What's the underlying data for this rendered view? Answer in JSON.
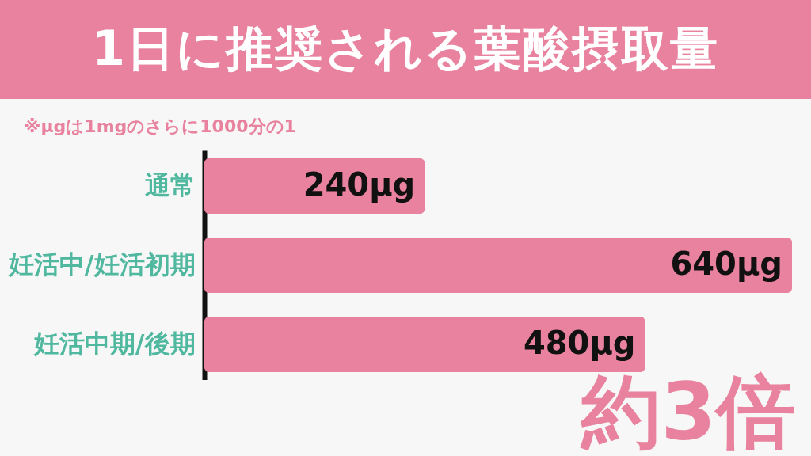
{
  "chart_data": {
    "type": "bar",
    "orientation": "horizontal",
    "title": "1日に推奨される葉酸摂取量",
    "categories": [
      "通常",
      "妊活中/妊活初期",
      "妊活中期/後期"
    ],
    "values": [
      240,
      640,
      480
    ],
    "value_labels": [
      "240μg",
      "640μg",
      "480μg"
    ],
    "color": "#e8829e",
    "annotations": [
      "※μgは1mgのさらに1000分の1",
      "約3倍"
    ]
  }
}
